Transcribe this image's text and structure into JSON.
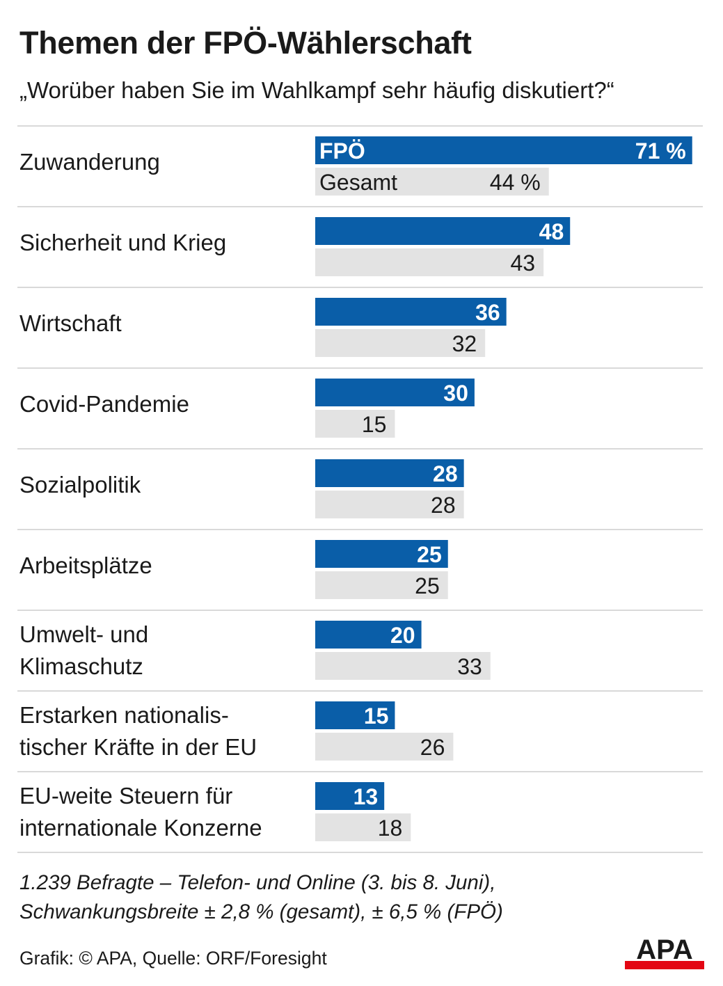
{
  "title": "Themen der FPÖ-Wählerschaft",
  "subtitle": "„Worüber haben Sie im Wahlkampf sehr häufig diskutiert?“",
  "colors": {
    "fpo": "#0a5ea8",
    "gesamt": "#e3e3e3",
    "separator": "#d9d9d9",
    "logo_red": "#e30613"
  },
  "chart_data": {
    "type": "bar",
    "orientation": "horizontal",
    "unit": "%",
    "categories": [
      [
        "Zuwanderung"
      ],
      [
        "Sicherheit und Krieg"
      ],
      [
        "Wirtschaft"
      ],
      [
        "Covid-Pandemie"
      ],
      [
        "Sozialpolitik"
      ],
      [
        "Arbeitsplätze"
      ],
      [
        "Umwelt- und",
        "Klimaschutz"
      ],
      [
        "Erstarken nationalis-",
        "tischer Kräfte in der EU"
      ],
      [
        "EU-weite Steuern für",
        "internationale Konzerne"
      ]
    ],
    "series": [
      {
        "name": "FPÖ",
        "values": [
          71,
          48,
          36,
          30,
          28,
          25,
          20,
          15,
          13
        ],
        "first_label": "71 %"
      },
      {
        "name": "Gesamt",
        "values": [
          44,
          43,
          32,
          15,
          28,
          25,
          33,
          26,
          18
        ],
        "first_label": "44 %"
      }
    ]
  },
  "footnote": {
    "line1": "1.239 Befragte – Telefon- und Online (3. bis 8. Juni),",
    "line2": "Schwankungsbreite ± 2,8 % (gesamt), ± 6,5 % (FPÖ)"
  },
  "credit": "Grafik: © APA, Quelle: ORF/Foresight",
  "logo_text": "APA"
}
